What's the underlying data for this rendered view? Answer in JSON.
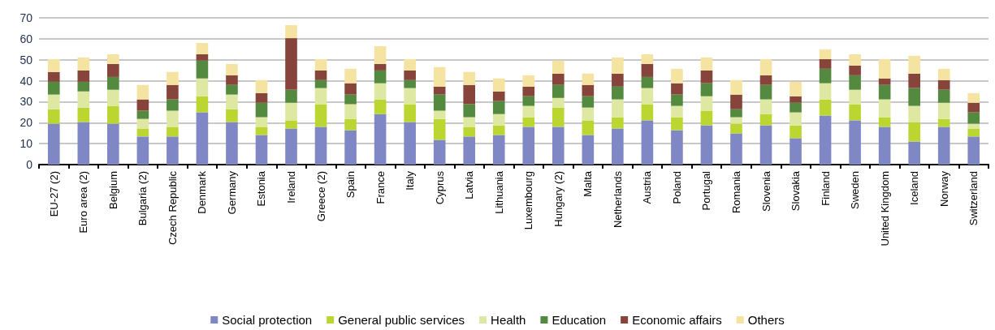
{
  "chart_data": {
    "type": "bar",
    "stacked": true,
    "categories": [
      "EU-27 (2)",
      "Euro area (2)",
      "Belgium",
      "Bulgaria (2)",
      "Czech Republic",
      "Denmark",
      "Germany",
      "Estonia",
      "Ireland",
      "Greece (2)",
      "Spain",
      "France",
      "Italy",
      "Cyprus",
      "Latvia",
      "Lithuania",
      "Luxembourg",
      "Hungary (2)",
      "Malta",
      "Netherlands",
      "Austria",
      "Poland",
      "Portugal",
      "Romania",
      "Slovenia",
      "Slovakia",
      "Finland",
      "Sweden",
      "United Kingdom",
      "Iceland",
      "Norway",
      "Switzerland"
    ],
    "series": [
      {
        "name": "Social protection",
        "color": "#7f88c4",
        "values": [
          19.5,
          20.3,
          19.5,
          13.4,
          13.4,
          24.9,
          20.3,
          14.1,
          17.2,
          18,
          16.4,
          24.1,
          20.3,
          11.8,
          13.4,
          14.1,
          18,
          18,
          14.1,
          17.2,
          21.1,
          16.4,
          18.7,
          14.9,
          18.7,
          12.6,
          23.4,
          21.1,
          18,
          11,
          18,
          13.4
        ]
      },
      {
        "name": "General public services",
        "color": "#bcd631",
        "values": [
          6.9,
          6.9,
          8.5,
          3.8,
          4.6,
          7.7,
          6.1,
          3.9,
          3.9,
          10.8,
          5.4,
          7,
          8.5,
          10,
          4.6,
          4.6,
          4.6,
          9.2,
          7,
          5.4,
          7.7,
          6.2,
          7,
          4.6,
          5.4,
          6.1,
          7.7,
          7.7,
          4.6,
          9.3,
          3.8,
          3.8
        ]
      },
      {
        "name": "Health",
        "color": "#dfe8a2",
        "values": [
          7,
          7.7,
          7.7,
          4.6,
          7.7,
          8.5,
          7,
          4.6,
          8.4,
          7.7,
          7,
          7.7,
          7.7,
          3.9,
          4.6,
          5.4,
          5.4,
          4.6,
          6.1,
          8.5,
          7.7,
          5.4,
          6.9,
          3.1,
          7,
          6.2,
          7.7,
          6.9,
          8.5,
          7.7,
          7.7,
          2.3
        ]
      },
      {
        "name": "Education",
        "color": "#548a3f",
        "values": [
          6.1,
          4.6,
          6.1,
          3.9,
          5.4,
          8.5,
          4.6,
          6.9,
          6.2,
          3.8,
          4.6,
          6.1,
          3.8,
          7.7,
          6.2,
          6.2,
          4.6,
          6.2,
          5.4,
          6.1,
          5.3,
          5.4,
          6.2,
          3.8,
          6.9,
          4.6,
          6.9,
          6.9,
          6.9,
          8.5,
          6.2,
          5.4
        ]
      },
      {
        "name": "Economic affairs",
        "color": "#86443a",
        "values": [
          4.7,
          5.4,
          6.2,
          5.4,
          6.9,
          3,
          4.6,
          4.6,
          24.6,
          4.6,
          5.4,
          3.1,
          4.6,
          3.8,
          9.2,
          4.6,
          4.6,
          5.4,
          5.4,
          6.2,
          6.2,
          5.4,
          6.1,
          7,
          4.6,
          3.1,
          4.6,
          4.6,
          3.1,
          6.9,
          4.6,
          4.6
        ]
      },
      {
        "name": "Others",
        "color": "#f5e4a1",
        "values": [
          6.1,
          6.2,
          4.6,
          6.9,
          6.2,
          5.4,
          5.4,
          6.2,
          6.2,
          5.4,
          6.9,
          8.5,
          5.4,
          9.3,
          6.2,
          6.2,
          5.4,
          6.2,
          5.4,
          7.7,
          4.6,
          6.9,
          6.2,
          6.9,
          7.7,
          6.9,
          4.6,
          5.4,
          9.2,
          8.5,
          5.4,
          4.6
        ]
      }
    ],
    "ylim": [
      0,
      70
    ],
    "yticks": [
      0,
      10,
      20,
      30,
      40,
      50,
      60,
      70
    ],
    "grid": "y",
    "legend": "bottom"
  }
}
